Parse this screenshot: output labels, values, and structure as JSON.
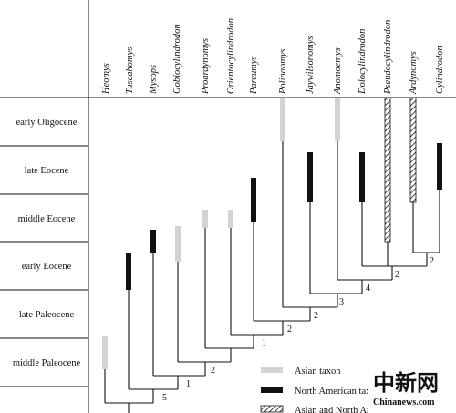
{
  "taxa": [
    "Heomys",
    "Tuscahomys",
    "Mysops",
    "Gobiocylindrodon",
    "Proardynomys",
    "Orientocylindrodon",
    "Pareumys",
    "Polinaomys",
    "Jaywilsonomys",
    "Anomoemys",
    "Dolocylindrodon",
    "Pseudocylindrodon",
    "Ardynomys",
    "Cylindrodon"
  ],
  "epochs": [
    "early Oligocene",
    "late Eocene",
    "middle Eocene",
    "early Eocene",
    "late Paleocene",
    "middle Paleocene"
  ],
  "ranges": [
    {
      "taxon": "Heomys",
      "type": "asian",
      "from": "middle Paleocene",
      "to": "middle Paleocene"
    },
    {
      "taxon": "Tuscahomys",
      "type": "north-american",
      "from": "early Eocene",
      "to": "early Eocene"
    },
    {
      "taxon": "Mysops",
      "type": "north-american",
      "from": "early Eocene",
      "to": "early Eocene"
    },
    {
      "taxon": "Gobiocylindrodon",
      "type": "asian",
      "from": "early Eocene",
      "to": "early Eocene"
    },
    {
      "taxon": "Proardynomys",
      "type": "asian",
      "from": "middle Eocene",
      "to": "middle Eocene"
    },
    {
      "taxon": "Orientocylindrodon",
      "type": "asian",
      "from": "middle Eocene",
      "to": "middle Eocene"
    },
    {
      "taxon": "Pareumys",
      "type": "north-american",
      "from": "middle Eocene",
      "to": "middle Eocene"
    },
    {
      "taxon": "Polinaomys",
      "type": "asian",
      "from": "early Oligocene",
      "to": "early Oligocene"
    },
    {
      "taxon": "Jaywilsonomys",
      "type": "north-american",
      "from": "late Eocene",
      "to": "late Eocene"
    },
    {
      "taxon": "Anomoemys",
      "type": "asian",
      "from": "early Oligocene",
      "to": "early Oligocene"
    },
    {
      "taxon": "Dolocylindrodon",
      "type": "north-american",
      "from": "late Eocene",
      "to": "late Eocene"
    },
    {
      "taxon": "Pseudocylindrodon",
      "type": "both",
      "from": "middle Eocene",
      "to": "early Oligocene"
    },
    {
      "taxon": "Ardynomys",
      "type": "both",
      "from": "middle Eocene",
      "to": "early Oligocene"
    },
    {
      "taxon": "Cylindrodon",
      "type": "north-american",
      "from": "late Eocene",
      "to": "late Eocene"
    }
  ],
  "node_labels": [
    "5",
    "1",
    "2",
    "1",
    "2",
    "2",
    "3",
    "4",
    "2",
    "2"
  ],
  "legend": {
    "asian": "Asian taxon",
    "north_american": "North American taxon",
    "both": "Asian and North American taxon"
  },
  "colors": {
    "asian": "#d3d3d3",
    "north_american": "#111111",
    "watermark": "#c8161d"
  },
  "watermark": {
    "cn": "中新网",
    "en": "Chinanews.com"
  }
}
